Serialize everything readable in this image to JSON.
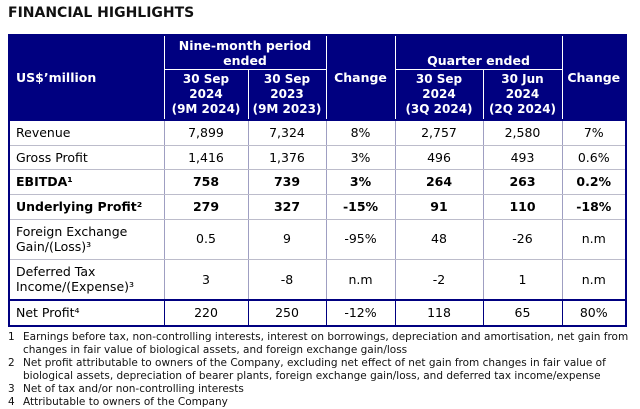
{
  "page_title": "FINANCIAL HIGHLIGHTS",
  "colors": {
    "header_bg": "#000080",
    "header_text": "#ffffff",
    "outer_border": "#000080",
    "inner_border": "#9f9fc2"
  },
  "table": {
    "unit_label": "US$’million",
    "header": {
      "nine_month_group": "Nine-month period ended",
      "quarter_group": "Quarter ended",
      "change_label_1": "Change",
      "change_label_2": "Change",
      "col_9m_2024": "30 Sep\n2024\n(9M 2024)",
      "col_9m_2023": "30 Sep\n2023\n(9M 2023)",
      "col_3q_2024": "30 Sep\n2024\n(3Q 2024)",
      "col_2q_2024": "30 Jun\n2024\n(2Q 2024)"
    },
    "rows": [
      {
        "label": "Revenue",
        "nm2024": "7,899",
        "nm2023": "7,324",
        "nm_change": "8%",
        "q3_2024": "2,757",
        "q2_2024": "2,580",
        "q_change": "7%"
      },
      {
        "label": "Gross Profit",
        "nm2024": "1,416",
        "nm2023": "1,376",
        "nm_change": "3%",
        "q3_2024": "496",
        "q2_2024": "493",
        "q_change": "0.6%"
      },
      {
        "label": "EBITDA¹",
        "nm2024": "758",
        "nm2023": "739",
        "nm_change": "3%",
        "q3_2024": "264",
        "q2_2024": "263",
        "q_change": "0.2%"
      },
      {
        "label": "Underlying Profit²",
        "nm2024": "279",
        "nm2023": "327",
        "nm_change": "-15%",
        "q3_2024": "91",
        "q2_2024": "110",
        "q_change": "-18%"
      },
      {
        "label": "Foreign Exchange Gain/(Loss)³",
        "nm2024": "0.5",
        "nm2023": "9",
        "nm_change": "-95%",
        "q3_2024": "48",
        "q2_2024": "-26",
        "q_change": "n.m"
      },
      {
        "label": "Deferred Tax Income/(Expense)³",
        "nm2024": "3",
        "nm2023": "-8",
        "nm_change": "n.m",
        "q3_2024": "-2",
        "q2_2024": "1",
        "q_change": "n.m"
      },
      {
        "label": "Net Profit⁴",
        "nm2024": "220",
        "nm2023": "250",
        "nm_change": "-12%",
        "q3_2024": "118",
        "q2_2024": "65",
        "q_change": "80%"
      }
    ]
  },
  "footnotes": [
    {
      "num": "1",
      "text": "Earnings before tax, non-controlling interests, interest on borrowings, depreciation and amortisation, net gain from changes in fair value of biological assets, and foreign exchange gain/loss"
    },
    {
      "num": "2",
      "text": "Net profit attributable to owners of the Company, excluding net effect of net gain from changes in fair value of biological assets, depreciation of bearer plants, foreign exchange gain/loss, and deferred tax income/expense"
    },
    {
      "num": "3",
      "text": "Net of tax and/or non-controlling interests"
    },
    {
      "num": "4",
      "text": "Attributable to owners of the Company"
    }
  ]
}
